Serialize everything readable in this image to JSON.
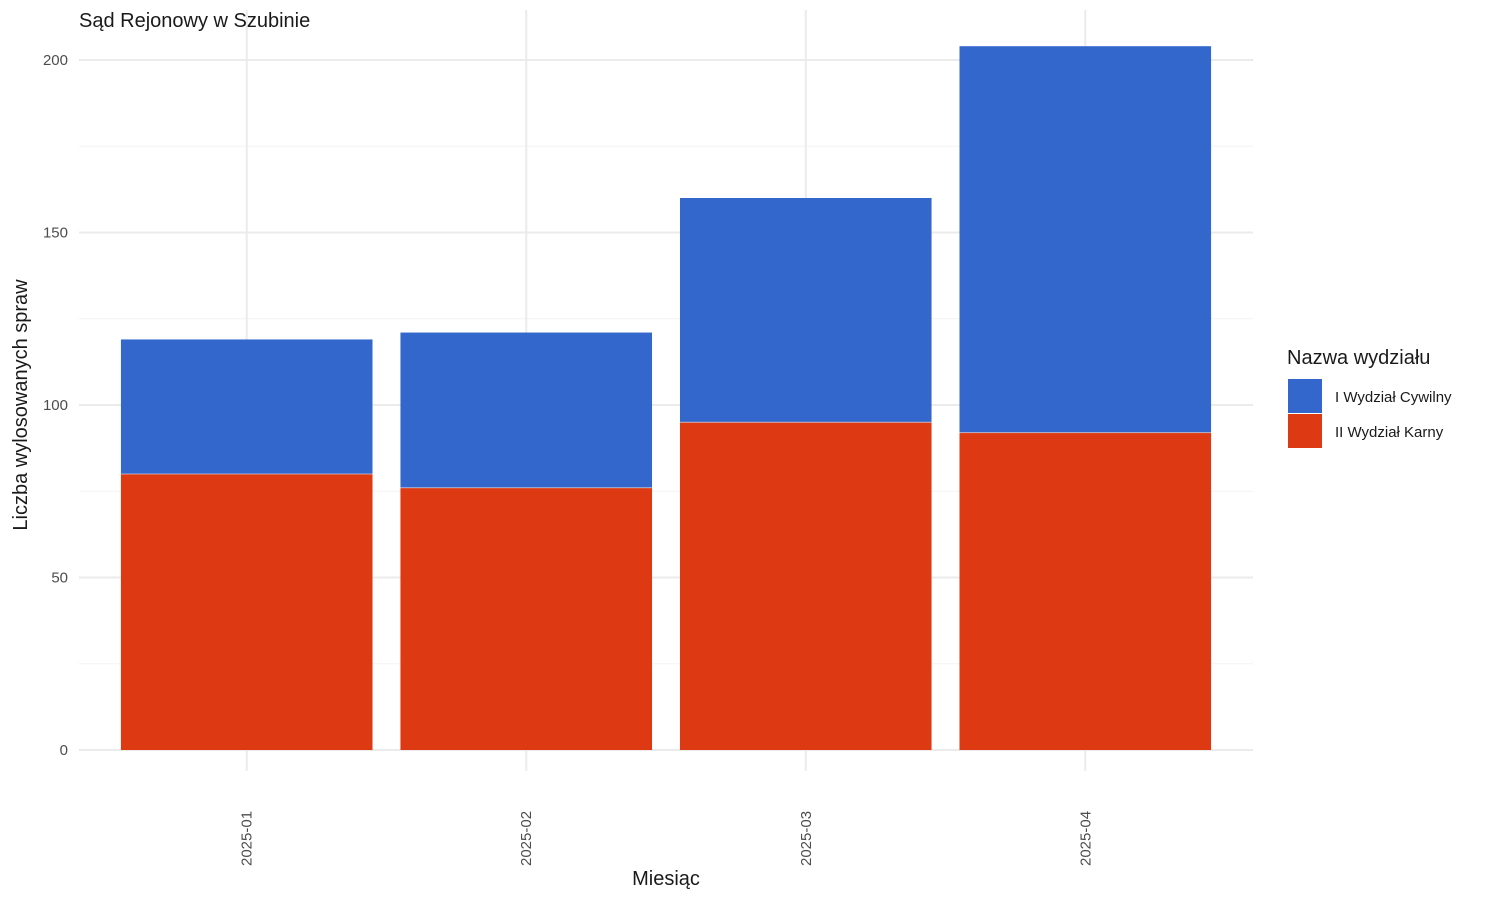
{
  "chart_data": {
    "type": "bar",
    "stacked": true,
    "title": "Sąd Rejonowy w Szubinie",
    "xlabel": "Miesiąc",
    "ylabel": "Liczba wylosowanych spraw",
    "categories": [
      "2025-01",
      "2025-02",
      "2025-03",
      "2025-04"
    ],
    "series": [
      {
        "name": "II Wydział Karny",
        "color": "#DD3912",
        "values": [
          80,
          76,
          95,
          92
        ]
      },
      {
        "name": "I Wydział Cywilny",
        "color": "#3367CC",
        "values": [
          39,
          45,
          65,
          112
        ]
      }
    ],
    "ylim": [
      0,
      204
    ],
    "yticks": [
      0,
      50,
      100,
      150,
      200
    ],
    "grid": true,
    "legend": {
      "title": "Nazwa wydziału",
      "placement": "right",
      "order": [
        "I Wydział Cywilny",
        "II Wydział Karny"
      ]
    }
  }
}
